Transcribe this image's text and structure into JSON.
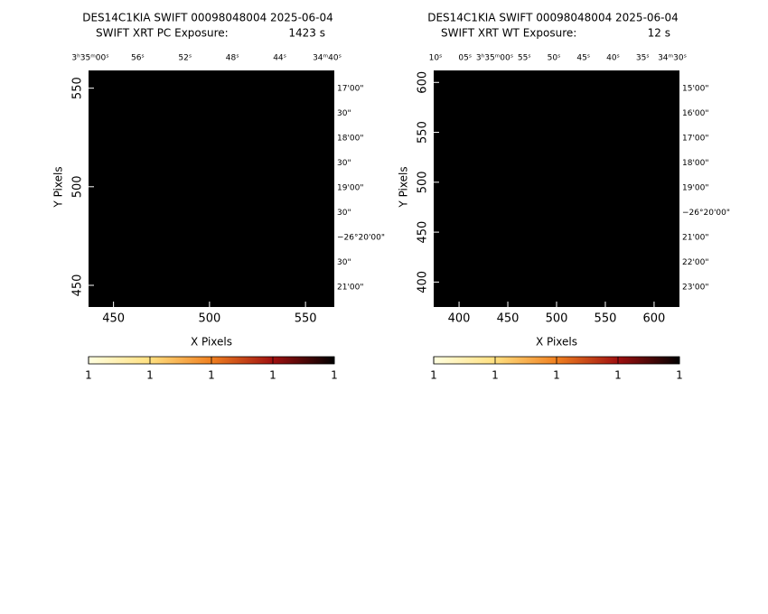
{
  "chart_data": [
    {
      "type": "image",
      "title": "DES14C1KIA SWIFT 00098048004 2025-06-04",
      "subtitle": "SWIFT XRT PC Exposure:",
      "exposure": "1423 s",
      "xlabel": "X Pixels",
      "ylabel": "Y Pixels",
      "xlim": [
        437,
        565
      ],
      "xticks": [
        450,
        500,
        550
      ],
      "ylim": [
        439,
        559
      ],
      "yticks": [
        450,
        500,
        550
      ],
      "ra_labels": [
        "3ʰ35ᵐ00ˢ",
        "56ˢ",
        "52ˢ",
        "48ˢ",
        "44ˢ",
        "34ᵐ40ˢ"
      ],
      "dec_labels": [
        "17'00\"",
        "30\"",
        "18'00\"",
        "30\"",
        "19'00\"",
        "30\"",
        "−26°20'00\"",
        "30\"",
        "21'00\""
      ],
      "colorbar_ticks": [
        "1",
        "1",
        "1",
        "1",
        "1"
      ]
    },
    {
      "type": "image",
      "title": "DES14C1KIA SWIFT 00098048004 2025-06-04",
      "subtitle": "SWIFT XRT WT Exposure:",
      "exposure": "12 s",
      "xlabel": "X Pixels",
      "ylabel": "Y Pixels",
      "xlim": [
        374,
        626
      ],
      "xticks": [
        400,
        450,
        500,
        550,
        600
      ],
      "ylim": [
        375,
        612
      ],
      "yticks": [
        400,
        450,
        500,
        550,
        600
      ],
      "ra_labels": [
        "10ˢ",
        "05ˢ",
        "3ʰ35ᵐ00ˢ",
        "55ˢ",
        "50ˢ",
        "45ˢ",
        "40ˢ",
        "35ˢ",
        "34ᵐ30ˢ"
      ],
      "dec_labels": [
        "15'00\"",
        "16'00\"",
        "17'00\"",
        "18'00\"",
        "19'00\"",
        "−26°20'00\"",
        "21'00\"",
        "22'00\"",
        "23'00\""
      ],
      "colorbar_ticks": [
        "1",
        "1",
        "1",
        "1",
        "1"
      ]
    }
  ]
}
